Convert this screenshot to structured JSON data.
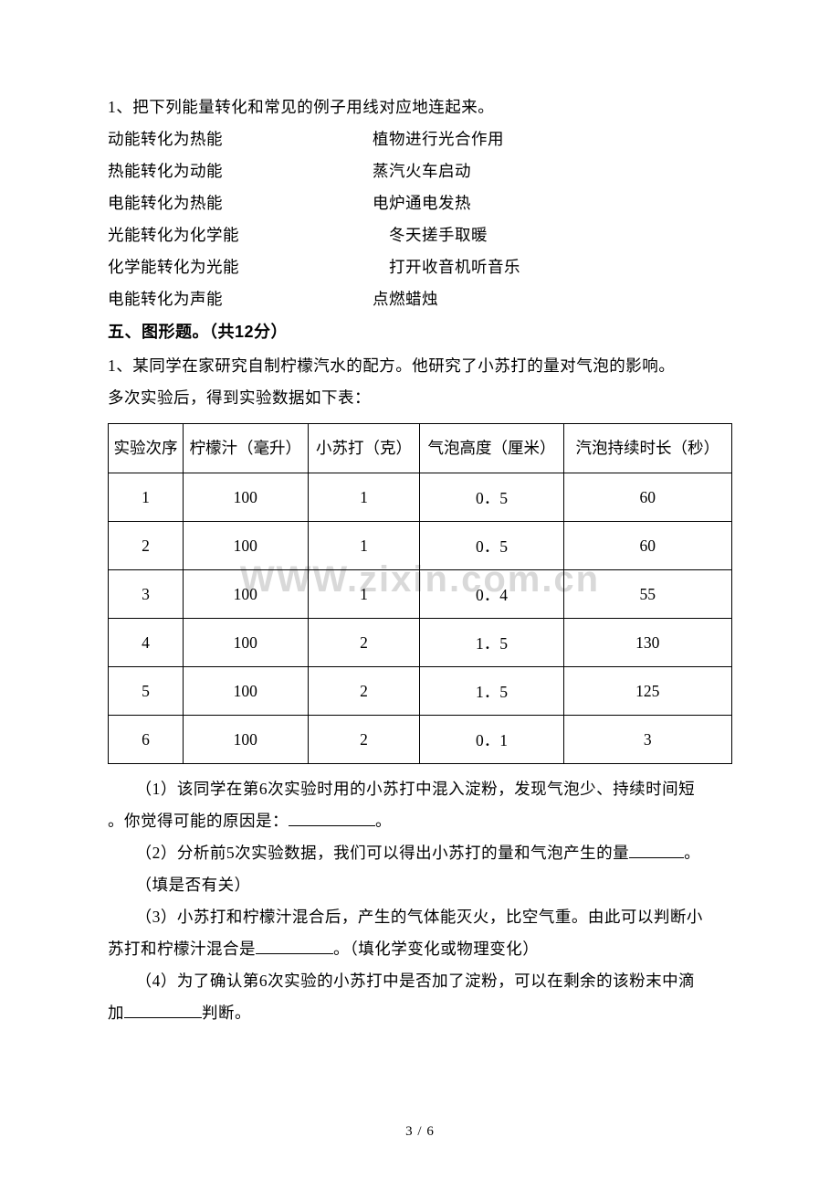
{
  "font_main": "SimSun",
  "font_heading": "SimHei",
  "text_color": "#000000",
  "bg_color": "#ffffff",
  "border_color": "#000000",
  "watermark_color": "#d9d9d9",
  "watermark_text": "WWW.zixin.com.cn",
  "body_fontsize": 17.5,
  "heading_fontsize": 18,
  "q1": {
    "prompt": "1、把下列能量转化和常见的例子用线对应地连起来。",
    "rows": [
      {
        "left": "动能转化为热能",
        "right": "植物进行光合作用"
      },
      {
        "left": "热能转化为动能",
        "right": "蒸汽火车启动"
      },
      {
        "left": "电能转化为热能",
        "right": "电炉通电发热"
      },
      {
        "left": "光能转化为化学能",
        "right": "　冬天搓手取暖"
      },
      {
        "left": "化学能转化为光能",
        "right": "　打开收音机听音乐"
      },
      {
        "left": "电能转化为声能",
        "right": "点燃蜡烛"
      }
    ]
  },
  "section5": {
    "heading": "五、图形题。（共12分）"
  },
  "q2": {
    "prompt_line1": "1、某同学在家研究自制柠檬汽水的配方。他研究了小苏打的量对气泡的影响。",
    "prompt_line2": "多次实验后，得到实验数据如下表：",
    "table": {
      "columns": [
        "实验次序",
        "柠檬汁（毫升）",
        "小苏打（克）",
        "气泡高度（厘米）",
        "汽泡持续时长（秒）"
      ],
      "rows": [
        [
          "1",
          "100",
          "1",
          "0．5",
          "60"
        ],
        [
          "2",
          "100",
          "1",
          "0．5",
          "60"
        ],
        [
          "3",
          "100",
          "1",
          "0．4",
          "55"
        ],
        [
          "4",
          "100",
          "2",
          "1．5",
          "130"
        ],
        [
          "5",
          "100",
          "2",
          "1．5",
          "125"
        ],
        [
          "6",
          "100",
          "2",
          "0．1",
          "3"
        ]
      ],
      "col_widths_pct": [
        12,
        20,
        18,
        23,
        27
      ],
      "header_row_height": 68,
      "data_row_height": 50
    },
    "sub1_a": "（1）该同学在第6次实验时用的小苏打中混入淀粉，发现气泡少、持续时间短",
    "sub1_b": "。你觉得可能的原因是：",
    "sub1_c": "。",
    "sub2_a": "（2）分析前5次实验数据，我们可以得出小苏打的量和气泡产生的量",
    "sub2_b": "。",
    "sub2_note": "（填是否有关）",
    "sub3_a": "（3）小苏打和柠檬汁混合后，产生的气体能灭火，比空气重。由此可以判断小",
    "sub3_b": "苏打和柠檬汁混合是",
    "sub3_c": "。（填化学变化或物理变化）",
    "sub4_a": "（4）为了确认第6次实验的小苏打中是否加了淀粉，可以在剩余的该粉末中滴",
    "sub4_b": "加",
    "sub4_c": "判断。"
  },
  "page_number": "3 / 6"
}
